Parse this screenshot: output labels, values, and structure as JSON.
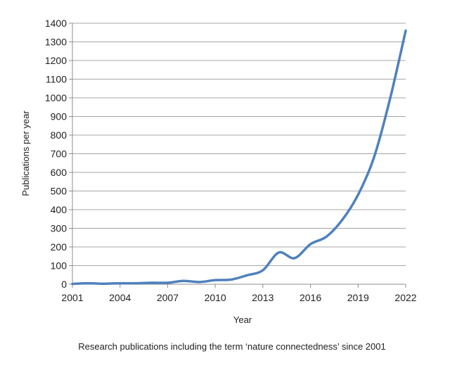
{
  "chart_data": {
    "type": "line",
    "title": "",
    "xlabel": "Year",
    "ylabel": "Publications per year",
    "caption": "Research publications including the term ‘nature connectedness’ since 2001",
    "x": [
      2001,
      2002,
      2003,
      2004,
      2005,
      2006,
      2007,
      2008,
      2009,
      2010,
      2011,
      2012,
      2013,
      2014,
      2015,
      2016,
      2017,
      2018,
      2019,
      2020,
      2021,
      2022
    ],
    "series": [
      {
        "values": [
          2,
          5,
          3,
          5,
          5,
          8,
          8,
          18,
          12,
          22,
          25,
          48,
          75,
          170,
          140,
          215,
          255,
          345,
          480,
          680,
          990,
          1360
        ],
        "color": "#4f81bd"
      }
    ],
    "xlim": [
      2001,
      2022
    ],
    "ylim": [
      0,
      1400
    ],
    "xticks": [
      "2001",
      "2004",
      "2007",
      "2010",
      "2013",
      "2016",
      "2019",
      "2022"
    ],
    "yticks": [
      "0",
      "100",
      "200",
      "300",
      "400",
      "500",
      "600",
      "700",
      "800",
      "900",
      "1000",
      "1100",
      "1200",
      "1300",
      "1400"
    ],
    "grid": "horizontal",
    "smooth": true,
    "legend": "none"
  }
}
